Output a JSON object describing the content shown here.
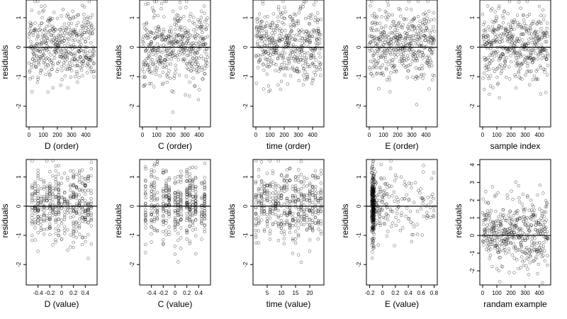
{
  "chart_data": [
    {
      "type": "scatter",
      "xlabel": "D (order)",
      "ylabel": "residuals",
      "xlim": [
        -20,
        480
      ],
      "ylim": [
        -2.7,
        1.6
      ],
      "xticks": [
        0,
        100,
        200,
        300,
        400
      ],
      "yticks": [
        -2,
        -1,
        0,
        1
      ],
      "hline": 0,
      "n": 450,
      "xgen": "index",
      "x_scale": 1,
      "seed": 11
    },
    {
      "type": "scatter",
      "xlabel": "C (order)",
      "ylabel": "residuals",
      "xlim": [
        -20,
        480
      ],
      "ylim": [
        -2.7,
        1.6
      ],
      "xticks": [
        0,
        100,
        200,
        300,
        400
      ],
      "yticks": [
        -2,
        -1,
        0,
        1
      ],
      "hline": 0,
      "n": 450,
      "xgen": "index",
      "x_scale": 1,
      "seed": 23
    },
    {
      "type": "scatter",
      "xlabel": "time (order)",
      "ylabel": "residuals",
      "xlim": [
        -20,
        480
      ],
      "ylim": [
        -2.7,
        1.6
      ],
      "xticks": [
        0,
        100,
        200,
        300,
        400
      ],
      "yticks": [
        -2,
        -1,
        0,
        1
      ],
      "hline": 0,
      "n": 450,
      "xgen": "index",
      "x_scale": 1,
      "seed": 37
    },
    {
      "type": "scatter",
      "xlabel": "E (order)",
      "ylabel": "residuals",
      "xlim": [
        -20,
        480
      ],
      "ylim": [
        -2.7,
        1.6
      ],
      "xticks": [
        0,
        100,
        200,
        300,
        400
      ],
      "yticks": [
        -2,
        -1,
        0,
        1
      ],
      "hline": 0,
      "n": 450,
      "xgen": "index",
      "x_scale": 1,
      "seed": 41
    },
    {
      "type": "scatter",
      "xlabel": "sample index",
      "ylabel": "residuals",
      "xlim": [
        -20,
        480
      ],
      "ylim": [
        -2.7,
        1.6
      ],
      "xticks": [
        0,
        100,
        200,
        300,
        400
      ],
      "yticks": [
        -2,
        -1,
        0,
        1
      ],
      "hline": 0,
      "n": 450,
      "xgen": "index",
      "x_scale": 1,
      "seed": 53
    },
    {
      "type": "scatter",
      "xlabel": "D (value)",
      "ylabel": "residuals",
      "xlim": [
        -0.6,
        0.6
      ],
      "ylim": [
        -2.7,
        1.6
      ],
      "xticks": [
        -0.4,
        -0.2,
        0.0,
        0.2,
        0.4
      ],
      "yticks": [
        -2,
        -1,
        0,
        1
      ],
      "hline": 0,
      "n": 450,
      "xgen": "levels",
      "levels": [
        -0.5,
        -0.45,
        -0.4,
        -0.35,
        -0.3,
        -0.25,
        -0.2,
        -0.15,
        -0.1,
        -0.05,
        0.0,
        0.05,
        0.1,
        0.15,
        0.2,
        0.25,
        0.3,
        0.35,
        0.4,
        0.45,
        0.5
      ],
      "x_scale": 1,
      "seed": 61
    },
    {
      "type": "scatter",
      "xlabel": "C (value)",
      "ylabel": "residuals",
      "xlim": [
        -0.6,
        0.6
      ],
      "ylim": [
        -2.7,
        1.6
      ],
      "xticks": [
        -0.4,
        -0.2,
        0.0,
        0.2,
        0.4
      ],
      "yticks": [
        -2,
        -1,
        0,
        1
      ],
      "hline": 0,
      "n": 450,
      "xgen": "levels",
      "levels": [
        -0.5,
        -0.4,
        -0.35,
        -0.3,
        -0.2,
        -0.15,
        -0.1,
        0.0,
        0.05,
        0.1,
        0.2,
        0.25,
        0.3,
        0.35,
        0.45,
        0.5
      ],
      "x_scale": 1,
      "seed": 71
    },
    {
      "type": "scatter",
      "xlabel": "time (value)",
      "ylabel": "residuals",
      "xlim": [
        0,
        25
      ],
      "ylim": [
        -2.7,
        1.6
      ],
      "xticks": [
        5,
        10,
        15,
        20
      ],
      "yticks": [
        -2,
        -1,
        0,
        1
      ],
      "hline": 0,
      "n": 450,
      "xgen": "levels",
      "levels": [
        1,
        2,
        3,
        4,
        5,
        6,
        7,
        8,
        9,
        10,
        11,
        12,
        13,
        14,
        15,
        16,
        17,
        18,
        19,
        20,
        21,
        22,
        23,
        24
      ],
      "x_scale": 1,
      "seed": 83
    },
    {
      "type": "scatter",
      "xlabel": "E (value)",
      "ylabel": "residuals",
      "xlim": [
        -0.25,
        0.85
      ],
      "ylim": [
        -2.7,
        1.6
      ],
      "xticks": [
        -0.2,
        0.0,
        0.2,
        0.4,
        0.6,
        0.8
      ],
      "yticks": [
        -2,
        -1,
        0,
        1
      ],
      "hline": 0,
      "n": 450,
      "xgen": "skew",
      "x_scale": 1,
      "seed": 97
    },
    {
      "type": "scatter",
      "xlabel": "randam example",
      "ylabel": "residuals",
      "xlim": [
        -20,
        480
      ],
      "ylim": [
        -2.8,
        4.3
      ],
      "xticks": [
        0,
        100,
        200,
        300,
        400
      ],
      "yticks": [
        -2,
        -1,
        0,
        1,
        2,
        3,
        4
      ],
      "hline": 0,
      "n": 450,
      "xgen": "index",
      "x_scale": 1,
      "seed": 103
    }
  ]
}
